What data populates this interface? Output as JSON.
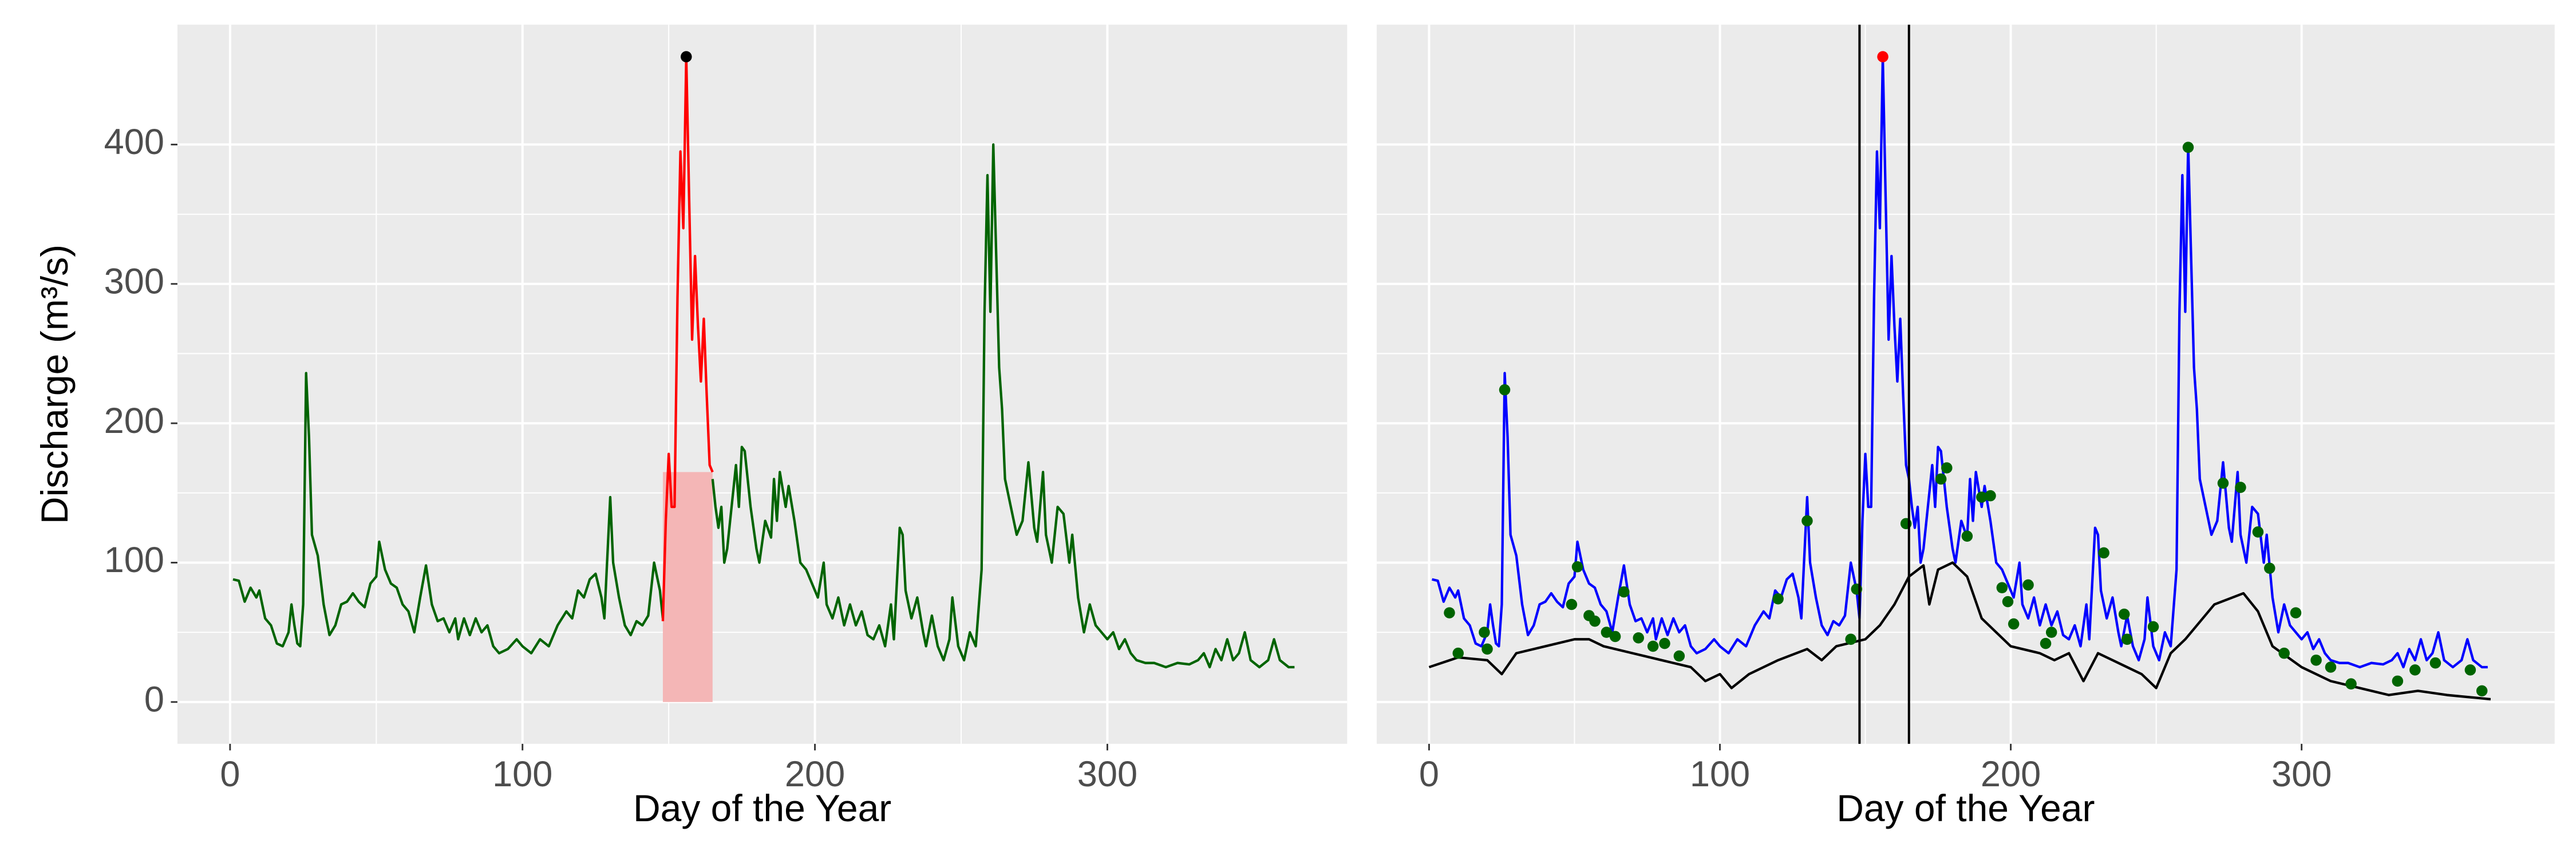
{
  "chart_data": [
    {
      "type": "line",
      "xlabel": "Day of the Year",
      "ylabel": "Discharge (m³/s)",
      "xlim": [
        -18,
        382
      ],
      "ylim": [
        -30,
        486
      ],
      "xticks": [
        0,
        100,
        200,
        300
      ],
      "yticks": [
        0,
        100,
        200,
        300,
        400
      ],
      "grid": true,
      "ytick_labels": true,
      "highlight": {
        "x": [
          148,
          165
        ],
        "y": [
          0,
          165
        ],
        "color": "#f4b6b6"
      },
      "series": [
        {
          "style": "line",
          "color": "#006400",
          "x": [
            1,
            3,
            5,
            7,
            9,
            10,
            12,
            14,
            16,
            18,
            20,
            21,
            22,
            23,
            24,
            25,
            26,
            27,
            28,
            30,
            32,
            34,
            36,
            38,
            40,
            42,
            44,
            46,
            48,
            50,
            51,
            53,
            55,
            57,
            59,
            61,
            63,
            65,
            67,
            69,
            71,
            73,
            75,
            77,
            78,
            80,
            82,
            84,
            86,
            88,
            90,
            92,
            95,
            98,
            100,
            103,
            106,
            109,
            112,
            115,
            117,
            119,
            121,
            123,
            125,
            127,
            128,
            130,
            131,
            133,
            135,
            137,
            139,
            141,
            143,
            145,
            147,
            148,
            156,
            165,
            166,
            167,
            168,
            169,
            170,
            172,
            173,
            174,
            175,
            176,
            178,
            180,
            181,
            183,
            185,
            186,
            187,
            188,
            190,
            191,
            193,
            195,
            197,
            199,
            201,
            203,
            204,
            206,
            208,
            210,
            212,
            214,
            216,
            218,
            220,
            222,
            224,
            226,
            227,
            229,
            230,
            231,
            233,
            235,
            237,
            238,
            240,
            242,
            244,
            246,
            247,
            249,
            251,
            253,
            255,
            257,
            258,
            259,
            260,
            261,
            262,
            263,
            264,
            265,
            267,
            269,
            271,
            273,
            275,
            276,
            278,
            279,
            281,
            283,
            285,
            287,
            288,
            290,
            292,
            294,
            296,
            298,
            300,
            302,
            304,
            306,
            308,
            310,
            313,
            316,
            320,
            324,
            328,
            331,
            333,
            335,
            337,
            339,
            341,
            343,
            345,
            347,
            349,
            352,
            355,
            357,
            359,
            362,
            364
          ],
          "values": [
            88,
            87,
            72,
            82,
            75,
            80,
            60,
            55,
            42,
            40,
            50,
            70,
            55,
            42,
            40,
            70,
            236,
            190,
            120,
            105,
            70,
            48,
            55,
            70,
            72,
            78,
            72,
            68,
            85,
            90,
            115,
            95,
            85,
            82,
            70,
            65,
            50,
            75,
            98,
            70,
            58,
            60,
            50,
            60,
            45,
            60,
            48,
            60,
            50,
            55,
            40,
            35,
            38,
            45,
            40,
            35,
            45,
            40,
            55,
            65,
            60,
            80,
            75,
            88,
            92,
            75,
            60,
            147,
            100,
            75,
            55,
            48,
            58,
            55,
            62,
            100,
            80,
            60,
            null,
            160,
            140,
            125,
            140,
            100,
            110,
            150,
            170,
            140,
            183,
            180,
            140,
            110,
            100,
            130,
            118,
            160,
            130,
            165,
            140,
            155,
            130,
            100,
            95,
            85,
            75,
            100,
            70,
            60,
            75,
            55,
            70,
            55,
            65,
            48,
            45,
            55,
            40,
            70,
            45,
            125,
            120,
            80,
            60,
            75,
            50,
            40,
            62,
            40,
            30,
            45,
            75,
            40,
            30,
            50,
            40,
            95,
            280,
            378,
            280,
            400,
            320,
            240,
            210,
            160,
            140,
            120,
            130,
            172,
            125,
            115,
            165,
            120,
            100,
            140,
            135,
            100,
            120,
            75,
            50,
            70,
            55,
            50,
            45,
            50,
            38,
            45,
            35,
            30,
            28,
            28,
            25,
            28,
            27,
            30,
            35,
            25,
            38,
            30,
            45,
            30,
            35,
            50,
            30,
            25,
            30,
            45,
            30,
            25,
            25
          ]
        },
        {
          "style": "line",
          "color": "#ff0000",
          "x": [
            148,
            149,
            150,
            151,
            152,
            153,
            154,
            155,
            156,
            157,
            158,
            159,
            160,
            161,
            162,
            163,
            164,
            165
          ],
          "values": [
            58,
            130,
            178,
            140,
            140,
            290,
            395,
            340,
            463,
            360,
            260,
            320,
            270,
            230,
            275,
            220,
            170,
            165
          ]
        },
        {
          "style": "points",
          "color": "#000000",
          "x": [
            156
          ],
          "values": [
            463
          ]
        }
      ]
    },
    {
      "type": "line",
      "xlabel": "Day of the Year",
      "xlim": [
        -18,
        387
      ],
      "ylim": [
        -30,
        486
      ],
      "xticks": [
        0,
        100,
        200,
        300
      ],
      "yticks": [
        0,
        100,
        200,
        300,
        400
      ],
      "grid": true,
      "ytick_labels": false,
      "vlines": [
        148,
        165
      ],
      "series": [
        {
          "style": "line",
          "color": "#0000ff",
          "x": [
            1,
            3,
            5,
            7,
            9,
            10,
            12,
            14,
            16,
            18,
            20,
            21,
            22,
            23,
            24,
            25,
            26,
            27,
            28,
            30,
            32,
            34,
            36,
            38,
            40,
            42,
            44,
            46,
            48,
            50,
            51,
            53,
            55,
            57,
            59,
            61,
            63,
            65,
            67,
            69,
            71,
            73,
            75,
            77,
            78,
            80,
            82,
            84,
            86,
            88,
            90,
            92,
            95,
            98,
            100,
            103,
            106,
            109,
            112,
            115,
            117,
            119,
            121,
            123,
            125,
            127,
            128,
            130,
            131,
            133,
            135,
            137,
            139,
            141,
            143,
            145,
            147,
            148,
            149,
            150,
            151,
            152,
            153,
            154,
            155,
            156,
            157,
            158,
            159,
            160,
            161,
            162,
            163,
            164,
            165,
            166,
            167,
            168,
            169,
            170,
            172,
            173,
            174,
            175,
            176,
            178,
            180,
            181,
            183,
            185,
            186,
            187,
            188,
            190,
            191,
            193,
            195,
            197,
            199,
            201,
            203,
            204,
            206,
            208,
            210,
            212,
            214,
            216,
            218,
            220,
            222,
            224,
            226,
            227,
            229,
            230,
            231,
            233,
            235,
            237,
            238,
            240,
            242,
            244,
            246,
            247,
            249,
            251,
            253,
            255,
            257,
            258,
            259,
            260,
            261,
            262,
            263,
            264,
            265,
            267,
            269,
            271,
            273,
            275,
            276,
            278,
            279,
            281,
            283,
            285,
            287,
            288,
            290,
            292,
            294,
            296,
            298,
            300,
            302,
            304,
            306,
            308,
            310,
            313,
            316,
            320,
            324,
            328,
            331,
            333,
            335,
            337,
            339,
            341,
            343,
            345,
            347,
            349,
            352,
            355,
            357,
            359,
            362,
            364
          ],
          "values": [
            88,
            87,
            72,
            82,
            75,
            80,
            60,
            55,
            42,
            40,
            50,
            70,
            55,
            42,
            40,
            70,
            236,
            190,
            120,
            105,
            70,
            48,
            55,
            70,
            72,
            78,
            72,
            68,
            85,
            90,
            115,
            95,
            85,
            82,
            70,
            65,
            50,
            75,
            98,
            70,
            58,
            60,
            50,
            60,
            45,
            60,
            48,
            60,
            50,
            55,
            40,
            35,
            38,
            45,
            40,
            35,
            45,
            40,
            55,
            65,
            60,
            80,
            75,
            88,
            92,
            75,
            60,
            147,
            100,
            75,
            55,
            48,
            58,
            55,
            62,
            100,
            80,
            60,
            130,
            178,
            140,
            140,
            290,
            395,
            340,
            463,
            360,
            260,
            320,
            270,
            230,
            275,
            220,
            170,
            160,
            140,
            125,
            140,
            100,
            110,
            150,
            170,
            140,
            183,
            180,
            140,
            110,
            100,
            130,
            118,
            160,
            130,
            165,
            140,
            155,
            130,
            100,
            95,
            85,
            75,
            100,
            70,
            60,
            75,
            55,
            70,
            55,
            65,
            48,
            45,
            55,
            40,
            70,
            45,
            125,
            120,
            80,
            60,
            75,
            50,
            40,
            62,
            40,
            30,
            45,
            75,
            40,
            30,
            50,
            40,
            95,
            280,
            378,
            280,
            400,
            320,
            240,
            210,
            160,
            140,
            120,
            130,
            172,
            125,
            115,
            165,
            120,
            100,
            140,
            135,
            100,
            120,
            75,
            50,
            70,
            55,
            50,
            45,
            50,
            38,
            45,
            35,
            30,
            28,
            28,
            25,
            28,
            27,
            30,
            35,
            25,
            38,
            30,
            45,
            30,
            35,
            50,
            30,
            25,
            30,
            45,
            30,
            25,
            25
          ]
        },
        {
          "style": "line",
          "color": "#000000",
          "x": [
            0,
            10,
            20,
            25,
            30,
            40,
            50,
            55,
            60,
            70,
            80,
            90,
            95,
            100,
            104,
            110,
            120,
            130,
            135,
            140,
            150,
            155,
            160,
            165,
            170,
            172,
            175,
            180,
            185,
            190,
            200,
            210,
            215,
            220,
            225,
            230,
            240,
            245,
            250,
            255,
            260,
            270,
            280,
            285,
            290,
            300,
            310,
            320,
            330,
            340,
            350,
            360,
            365
          ],
          "values": [
            25,
            32,
            30,
            20,
            35,
            40,
            45,
            45,
            40,
            35,
            30,
            25,
            15,
            20,
            10,
            20,
            30,
            38,
            30,
            40,
            45,
            55,
            70,
            90,
            98,
            70,
            95,
            100,
            90,
            60,
            40,
            35,
            30,
            35,
            15,
            35,
            25,
            20,
            10,
            35,
            45,
            70,
            78,
            65,
            40,
            25,
            15,
            10,
            5,
            8,
            5,
            3,
            2
          ]
        },
        {
          "style": "points",
          "color": "#006400",
          "x": [
            7,
            10,
            19,
            20,
            26,
            49,
            51,
            55,
            57,
            61,
            64,
            67,
            72,
            77,
            81,
            86,
            120,
            130,
            145,
            147,
            164,
            176,
            178,
            185,
            190,
            193,
            197,
            199,
            201,
            206,
            212,
            214,
            232,
            239,
            240,
            249,
            261,
            273,
            279,
            285,
            289,
            294,
            298,
            305,
            310,
            317,
            333,
            339,
            346,
            358,
            362
          ],
          "values": [
            64,
            35,
            50,
            38,
            224,
            70,
            97,
            62,
            58,
            50,
            47,
            79,
            46,
            40,
            42,
            33,
            74,
            130,
            45,
            81,
            128,
            160,
            168,
            119,
            147,
            148,
            82,
            72,
            56,
            84,
            42,
            50,
            107,
            63,
            45,
            54,
            398,
            157,
            154,
            122,
            96,
            35,
            64,
            30,
            25,
            13,
            15,
            23,
            28,
            23,
            8
          ]
        },
        {
          "style": "points",
          "color": "#ff0000",
          "x": [
            156
          ],
          "values": [
            463
          ]
        }
      ]
    }
  ]
}
